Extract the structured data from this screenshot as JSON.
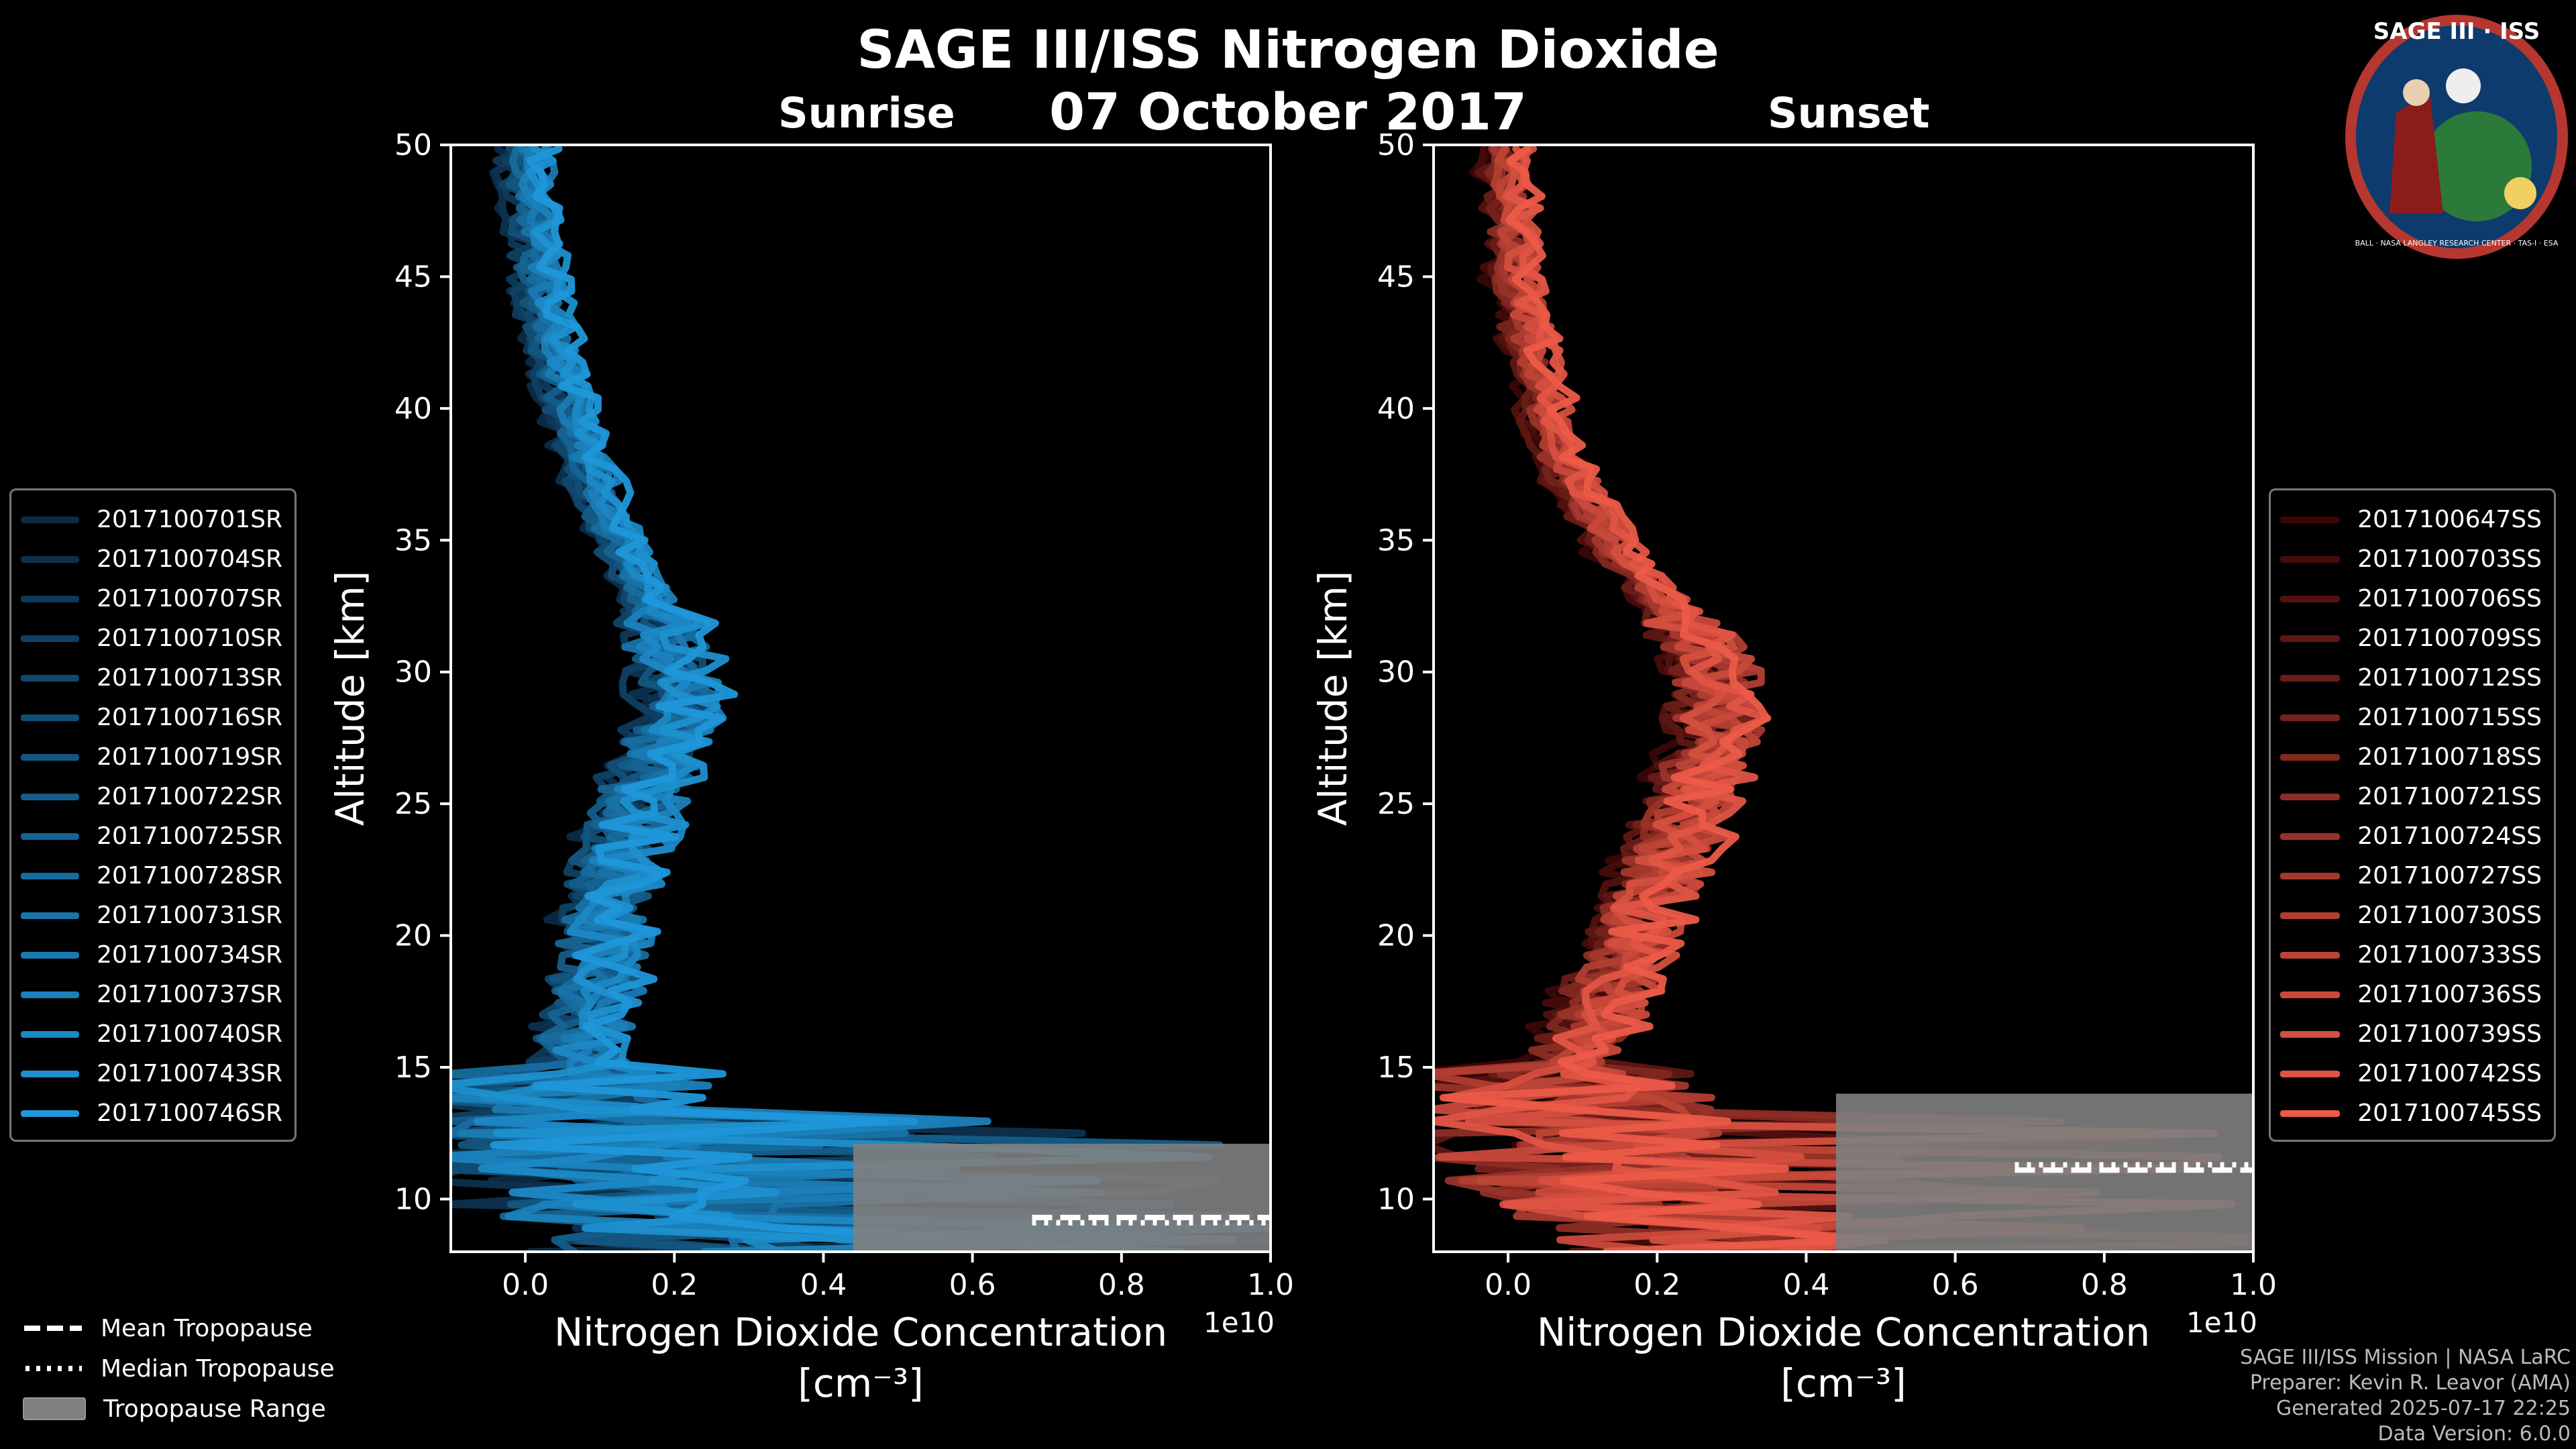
{
  "header": {
    "title": "SAGE III/ISS Nitrogen Dioxide",
    "date": "07 October 2017",
    "sunrise_label": "Sunrise",
    "sunset_label": "Sunset"
  },
  "logo": {
    "text": "SAGE III · ISS",
    "ring_text": "BALL · NASA LANGLEY RESEARCH CENTER · TAS-I · ESA"
  },
  "colors": {
    "sunrise": "#1f97d9",
    "sunset": "#ec5a48",
    "tropo_range": "#808080"
  },
  "tropopause_legend": {
    "mean": "Mean Tropopause",
    "median": "Median Tropopause",
    "range": "Tropopause Range"
  },
  "footer": {
    "line1": "SAGE III/ISS Mission | NASA LaRC",
    "line2": "Preparer: Kevin R. Leavor (AMA)",
    "line3": "Generated 2025-07-17 22:25",
    "line4": "Data Version: 6.0.0"
  },
  "chart_data": [
    {
      "type": "line",
      "panel": "Sunrise",
      "xlabel_line1": "Nitrogen Dioxide Concentration",
      "xlabel_line2": "[cm⁻³]",
      "ylabel": "Altitude [km]",
      "offset_label": "1e10",
      "xlim": [
        -0.1,
        1.0
      ],
      "ylim": [
        8,
        50
      ],
      "xticks": [
        0.0,
        0.2,
        0.4,
        0.6,
        0.8,
        1.0
      ],
      "xtick_labels": [
        "0.0",
        "0.2",
        "0.4",
        "0.6",
        "0.8",
        "1.0"
      ],
      "yticks": [
        10,
        15,
        20,
        25,
        30,
        35,
        40,
        45,
        50
      ],
      "ytick_labels": [
        "10",
        "15",
        "20",
        "25",
        "30",
        "35",
        "40",
        "45",
        "50"
      ],
      "tropopause": {
        "mean": 9.3,
        "median": 9.1,
        "range": [
          8.0,
          12.1
        ]
      },
      "mean_profile": {
        "alt": [
          8,
          9,
          10,
          11,
          12,
          13,
          15,
          18,
          20,
          22,
          25,
          28,
          30,
          33,
          35,
          38,
          40,
          42,
          45,
          48,
          50
        ],
        "no2": [
          0.25,
          0.2,
          0.12,
          0.08,
          0.06,
          0.05,
          0.07,
          0.1,
          0.1,
          0.12,
          0.15,
          0.2,
          0.2,
          0.16,
          0.12,
          0.08,
          0.06,
          0.04,
          0.02,
          0.01,
          0.0
        ]
      },
      "series": [
        "2017100701SR",
        "2017100704SR",
        "2017100707SR",
        "2017100710SR",
        "2017100713SR",
        "2017100716SR",
        "2017100719SR",
        "2017100722SR",
        "2017100725SR",
        "2017100728SR",
        "2017100731SR",
        "2017100734SR",
        "2017100737SR",
        "2017100740SR",
        "2017100743SR",
        "2017100746SR"
      ]
    },
    {
      "type": "line",
      "panel": "Sunset",
      "xlabel_line1": "Nitrogen Dioxide Concentration",
      "xlabel_line2": "[cm⁻³]",
      "ylabel": "Altitude [km]",
      "offset_label": "1e10",
      "xlim": [
        -0.1,
        1.0
      ],
      "ylim": [
        8,
        50
      ],
      "xticks": [
        0.0,
        0.2,
        0.4,
        0.6,
        0.8,
        1.0
      ],
      "xtick_labels": [
        "0.0",
        "0.2",
        "0.4",
        "0.6",
        "0.8",
        "1.0"
      ],
      "yticks": [
        10,
        15,
        20,
        25,
        30,
        35,
        40,
        45,
        50
      ],
      "ytick_labels": [
        "10",
        "15",
        "20",
        "25",
        "30",
        "35",
        "40",
        "45",
        "50"
      ],
      "tropopause": {
        "mean": 11.1,
        "median": 11.3,
        "range": [
          8.0,
          14.0
        ]
      },
      "mean_profile": {
        "alt": [
          8,
          9,
          10,
          11,
          12,
          13,
          15,
          18,
          20,
          22,
          25,
          28,
          30,
          33,
          35,
          38,
          40,
          42,
          45,
          48,
          50
        ],
        "no2": [
          0.3,
          0.25,
          0.18,
          0.12,
          0.08,
          0.06,
          0.08,
          0.14,
          0.17,
          0.2,
          0.25,
          0.28,
          0.28,
          0.2,
          0.13,
          0.07,
          0.05,
          0.03,
          0.01,
          0.0,
          0.0
        ]
      },
      "series": [
        "2017100647SS",
        "2017100703SS",
        "2017100706SS",
        "2017100709SS",
        "2017100712SS",
        "2017100715SS",
        "2017100718SS",
        "2017100721SS",
        "2017100724SS",
        "2017100727SS",
        "2017100730SS",
        "2017100733SS",
        "2017100736SS",
        "2017100739SS",
        "2017100742SS",
        "2017100745SS"
      ]
    }
  ]
}
